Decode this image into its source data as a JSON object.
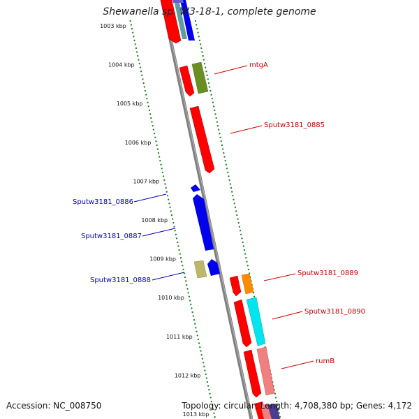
{
  "title": "Shewanella sp. W3-18-1, complete genome",
  "accession": "Accession: NC_008750",
  "summary": "Topology: circular; Length: 4,708,380 bp; Genes: 4,172",
  "colors": {
    "backbone": "#808080",
    "forward_label": "#cc0000",
    "reverse_label": "#0000bb",
    "tick": "#1a7a1a",
    "red": "#ff0000",
    "blue": "#0000ee",
    "olive": "#6b8e23",
    "khaki": "#bdb76b",
    "orange": "#ff8c00",
    "cyan": "#00e5ee",
    "pink": "#f08080",
    "steelblue": "#5f9ea0",
    "purple": "#6a5acd"
  },
  "ticks": [
    {
      "label": "1003 kbp"
    },
    {
      "label": "1004 kbp"
    },
    {
      "label": "1005 kbp"
    },
    {
      "label": "1006 kbp"
    },
    {
      "label": "1007 kbp"
    },
    {
      "label": "1008 kbp"
    },
    {
      "label": "1009 kbp"
    },
    {
      "label": "1010 kbp"
    },
    {
      "label": "1011 kbp"
    },
    {
      "label": "1012 kbp"
    },
    {
      "label": "1013 kbp"
    }
  ],
  "gene_labels": {
    "mtgA": "mtgA",
    "g0885": "Sputw3181_0885",
    "g0886": "Sputw3181_0886",
    "g0887": "Sputw3181_0887",
    "g0888": "Sputw3181_0888",
    "g0889": "Sputw3181_0889",
    "g0890": "Sputw3181_0890",
    "rumB": "rumB"
  }
}
